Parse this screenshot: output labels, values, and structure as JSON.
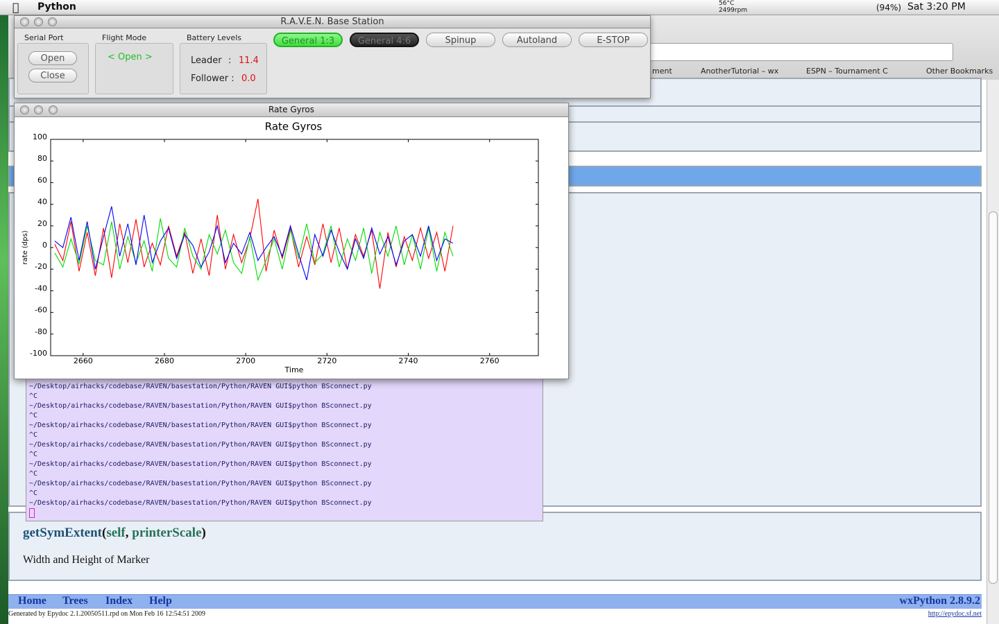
{
  "menu_bar": {
    "app": "Python",
    "temperature": "56°C",
    "fan": "2499rpm",
    "battery": "(94%)",
    "clock": "Sat 3:20 PM"
  },
  "browser": {
    "bookmarks": [
      "ment",
      "AnotherTutorial – wx",
      "ESPN – Tournament C",
      "Other Bookmarks"
    ]
  },
  "doc": {
    "signature": {
      "name": "getSymExtent",
      "open": "(",
      "arg1": "self",
      "separator": ", ",
      "arg2": "printerScale",
      "close": ")"
    },
    "description": "Width and Height of Marker",
    "nav": [
      "Home",
      "Trees",
      "Index",
      "Help"
    ],
    "version": "wxPython 2.8.9.2",
    "footer": "Generated by Epydoc 2.1.20050511.rpd on Mon Feb 16 12:54:51 2009",
    "footer_link": "http://epydoc.sf.net"
  },
  "terminal": {
    "lines": [
      "~/Desktop/airhacks/codebase/RAVEN/basestation/Python/RAVEN GUI$python BSconnect.py",
      "^C",
      "~/Desktop/airhacks/codebase/RAVEN/basestation/Python/RAVEN GUI$python BSconnect.py",
      "^C",
      "~/Desktop/airhacks/codebase/RAVEN/basestation/Python/RAVEN GUI$python BSconnect.py",
      "^C",
      "~/Desktop/airhacks/codebase/RAVEN/basestation/Python/RAVEN GUI$python BSconnect.py",
      "^C",
      "~/Desktop/airhacks/codebase/RAVEN/basestation/Python/RAVEN GUI$python BSconnect.py",
      "^C",
      "~/Desktop/airhacks/codebase/RAVEN/basestation/Python/RAVEN GUI$python BSconnect.py",
      "^C",
      "~/Desktop/airhacks/codebase/RAVEN/basestation/Python/RAVEN GUI$python BSconnect.py"
    ]
  },
  "raven": {
    "title": "R.A.V.E.N. Base Station",
    "serial_port": {
      "label": "Serial Port",
      "open": "Open",
      "close": "Close"
    },
    "flight_mode": {
      "label": "Flight Mode",
      "value": "< Open >"
    },
    "battery": {
      "label": "Battery Levels",
      "leader_label": "Leader",
      "leader_sep": ":",
      "leader_value": "11.4",
      "follower_label": "Follower :",
      "follower_value": "0.0"
    },
    "tabs": [
      "General 1:3",
      "General 4:6",
      "Spinup",
      "Autoland",
      "E-STOP"
    ]
  },
  "gyro_window": {
    "title": "Rate Gyros"
  },
  "chart_data": {
    "type": "line",
    "title": "Rate Gyros",
    "x_label": "Time",
    "y_label": "rate (dps)",
    "xlim": [
      2652,
      2772
    ],
    "ylim": [
      -100,
      100
    ],
    "xticks": [
      2660,
      2680,
      2700,
      2720,
      2740,
      2760
    ],
    "yticks": [
      -100,
      -80,
      -60,
      -40,
      -20,
      0,
      20,
      40,
      60,
      80,
      100
    ],
    "x": [
      2653,
      2655,
      2657,
      2659,
      2661,
      2663,
      2665,
      2667,
      2669,
      2671,
      2673,
      2675,
      2677,
      2679,
      2681,
      2683,
      2685,
      2687,
      2689,
      2691,
      2693,
      2695,
      2697,
      2699,
      2701,
      2703,
      2705,
      2707,
      2709,
      2711,
      2713,
      2715,
      2717,
      2719,
      2721,
      2723,
      2725,
      2727,
      2729,
      2731,
      2733,
      2735,
      2737,
      2739,
      2741,
      2743,
      2745,
      2747,
      2749,
      2751
    ],
    "series": [
      {
        "name": "red",
        "color": "#ff0000",
        "values": [
          3,
          -12,
          24,
          -22,
          14,
          -26,
          18,
          -28,
          22,
          -14,
          26,
          -18,
          4,
          -16,
          20,
          -8,
          14,
          -24,
          8,
          -26,
          30,
          -20,
          12,
          -14,
          8,
          45,
          -22,
          16,
          -10,
          18,
          -18,
          10,
          -16,
          22,
          -14,
          18,
          -20,
          12,
          -8,
          16,
          -38,
          14,
          -18,
          10,
          -12,
          18,
          -10,
          14,
          -22,
          20
        ]
      },
      {
        "name": "green",
        "color": "#00dd00",
        "values": [
          -5,
          -18,
          8,
          -15,
          20,
          -12,
          -16,
          24,
          -20,
          10,
          -14,
          6,
          -22,
          27,
          -10,
          -18,
          18,
          -8,
          -20,
          12,
          -6,
          16,
          -14,
          -24,
          10,
          -30,
          -12,
          8,
          -20,
          16,
          -10,
          22,
          -14,
          -6,
          20,
          -18,
          8,
          -12,
          18,
          -24,
          14,
          -8,
          20,
          -16,
          12,
          -20,
          18,
          -22,
          14,
          -8
        ]
      },
      {
        "name": "blue",
        "color": "#0000ff",
        "values": [
          6,
          0,
          28,
          -12,
          24,
          -20,
          10,
          38,
          -8,
          22,
          -16,
          30,
          -14,
          6,
          18,
          -10,
          12,
          2,
          -18,
          -4,
          20,
          -14,
          4,
          -6,
          14,
          -12,
          0,
          10,
          -8,
          20,
          -6,
          -30,
          12,
          -8,
          16,
          -4,
          -20,
          8,
          -10,
          18,
          -6,
          10,
          -16,
          6,
          12,
          -8,
          20,
          -12,
          8,
          4
        ]
      }
    ]
  }
}
